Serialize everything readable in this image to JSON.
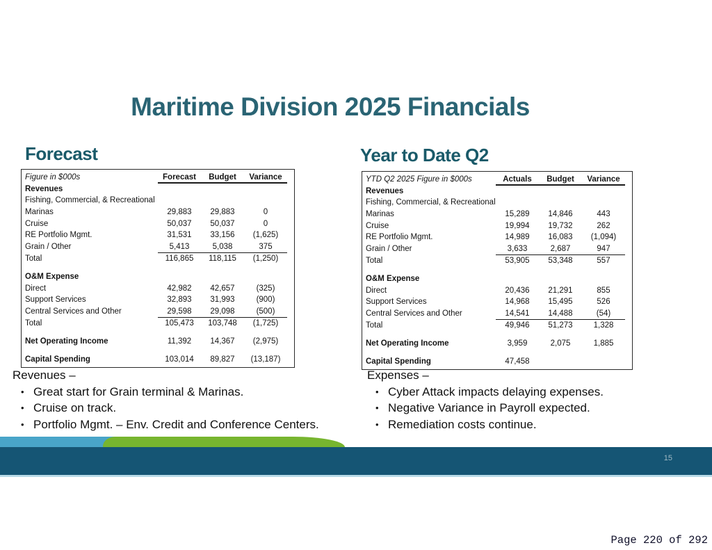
{
  "colors": {
    "title-color": "#2a6474",
    "heading-color": "#1a5a69",
    "band-color": "#155574",
    "band-num-color": "#9fb9c4",
    "band-line": "#b8dbe8",
    "blue-wave": "#49a5c9",
    "green-wave": "#77b52f"
  },
  "page": {
    "footer_label": "Page 220 of 292"
  },
  "slide": {
    "title": "Maritime Division 2025 Financials",
    "page_number": "15",
    "forecast": {
      "heading": "Forecast",
      "table": {
        "caption": "Figure in $000s",
        "columns": [
          "Forecast",
          "Budget",
          "Variance"
        ],
        "rows": [
          {
            "label": "Revenues",
            "bold": true
          },
          {
            "label": "Fishing, Commercial,  & Recreational"
          },
          {
            "label": "Marinas",
            "c1": "29,883",
            "c2": "29,883",
            "c3": "0"
          },
          {
            "label": "Cruise",
            "c1": "50,037",
            "c2": "50,037",
            "c3": "0"
          },
          {
            "label": "RE Portfolio Mgmt.",
            "c1": "31,531",
            "c2": "33,156",
            "c3": "(1,625)"
          },
          {
            "label": "Grain / Other",
            "c1": "5,413",
            "c2": "5,038",
            "c3": "375",
            "rule": true
          },
          {
            "label": "Total",
            "c1": "116,865",
            "c2": "118,115",
            "c3": "(1,250)"
          },
          {
            "spacer": true
          },
          {
            "label": "O&M Expense",
            "bold": true
          },
          {
            "label": "Direct",
            "c1": "42,982",
            "c2": "42,657",
            "c3": "(325)"
          },
          {
            "label": "Support Services",
            "c1": "32,893",
            "c2": "31,993",
            "c3": "(900)"
          },
          {
            "label": "Central Services and Other",
            "c1": "29,598",
            "c2": "29,098",
            "c3": "(500)",
            "rule": true
          },
          {
            "label": "Total",
            "c1": "105,473",
            "c2": "103,748",
            "c3": "(1,725)"
          },
          {
            "spacer": true
          },
          {
            "label": "Net Operating Income",
            "bold": true,
            "c1": "11,392",
            "c2": "14,367",
            "c3": "(2,975)"
          },
          {
            "spacer": true
          },
          {
            "label": "Capital Spending",
            "bold": true,
            "c1": "103,014",
            "c2": "89,827",
            "c3": "(13,187)"
          }
        ]
      },
      "notes": {
        "heading": "Revenues –",
        "bullets": [
          "Great start for Grain terminal & Marinas.",
          "Cruise on track.",
          "Portfolio Mgmt. – Env.  Credit and Conference Centers."
        ]
      }
    },
    "ytd": {
      "heading": "Year to Date Q2",
      "table": {
        "caption": "YTD Q2 2025 Figure in $000s",
        "columns": [
          "Actuals",
          "Budget",
          "Variance"
        ],
        "rows": [
          {
            "label": "Revenues",
            "bold": true
          },
          {
            "label": "Fishing, Commercial,  & Recreational"
          },
          {
            "label": "Marinas",
            "c1": "15,289",
            "c2": "14,846",
            "c3": "443"
          },
          {
            "label": "Cruise",
            "c1": "19,994",
            "c2": "19,732",
            "c3": "262"
          },
          {
            "label": "RE Portfolio Mgmt.",
            "c1": "14,989",
            "c2": "16,083",
            "c3": "(1,094)"
          },
          {
            "label": "Grain / Other",
            "c1": "3,633",
            "c2": "2,687",
            "c3": "947",
            "rule": true
          },
          {
            "label": "Total",
            "c1": "53,905",
            "c2": "53,348",
            "c3": "557"
          },
          {
            "spacer": true
          },
          {
            "label": "O&M Expense",
            "bold": true
          },
          {
            "label": "Direct",
            "c1": "20,436",
            "c2": "21,291",
            "c3": "855"
          },
          {
            "label": "Support Services",
            "c1": "14,968",
            "c2": "15,495",
            "c3": "526"
          },
          {
            "label": "Central Services and Other",
            "c1": "14,541",
            "c2": "14,488",
            "c3": "(54)",
            "rule": true
          },
          {
            "label": "Total",
            "c1": "49,946",
            "c2": "51,273",
            "c3": "1,328"
          },
          {
            "spacer": true
          },
          {
            "label": "Net Operating Income",
            "bold": true,
            "c1": "3,959",
            "c2": "2,075",
            "c3": "1,885"
          },
          {
            "spacer": true
          },
          {
            "label": "Capital Spending",
            "bold": true,
            "c1": "47,458",
            "c2": "",
            "c3": ""
          }
        ]
      },
      "notes": {
        "heading": "Expenses –",
        "bullets": [
          "Cyber Attack impacts delaying expenses.",
          "Negative Variance in Payroll expected.",
          "Remediation costs continue."
        ]
      }
    }
  }
}
